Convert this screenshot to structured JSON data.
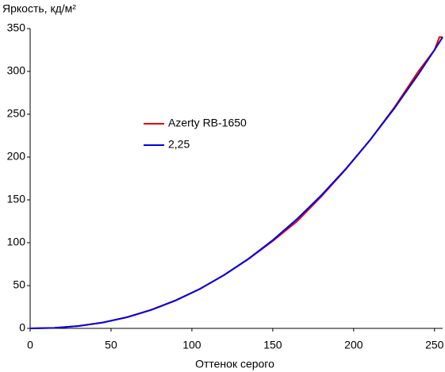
{
  "chart_data": {
    "type": "line",
    "y_label": "Яркость, кд/м²",
    "x_label": "Оттенок серого",
    "x": [
      0,
      15,
      30,
      45,
      60,
      75,
      90,
      105,
      120,
      135,
      150,
      165,
      180,
      195,
      210,
      225,
      240,
      250,
      253,
      255
    ],
    "series": [
      {
        "name": "Azerty RB-1650",
        "color": "#e00000",
        "values": [
          0,
          0.6,
          2.8,
          6.9,
          13.1,
          21.8,
          32.8,
          46.0,
          62.4,
          81.0,
          102.0,
          125.0,
          154.0,
          185.5,
          219.5,
          257.5,
          300,
          325,
          340,
          340
        ]
      },
      {
        "name": "2,25",
        "color": "#0000e0",
        "values": [
          0,
          0.58,
          2.76,
          6.86,
          13.1,
          21.6,
          32.6,
          46.2,
          62.4,
          81.3,
          103.0,
          127.7,
          155.3,
          185.9,
          219.6,
          256.5,
          296.6,
          325.2,
          334.0,
          340
        ]
      }
    ],
    "xlim": [
      0,
      255
    ],
    "xticks": [
      0,
      50,
      100,
      150,
      200,
      250
    ],
    "ylim": [
      0,
      350
    ],
    "yticks": [
      0,
      50,
      100,
      150,
      200,
      250,
      300,
      350
    ]
  }
}
